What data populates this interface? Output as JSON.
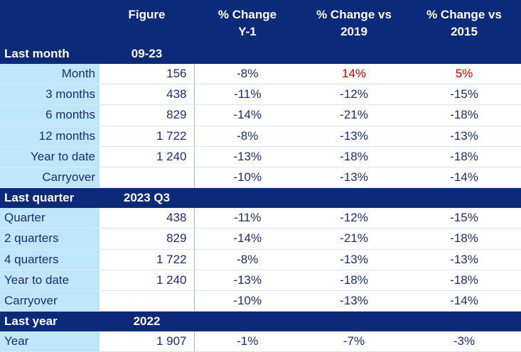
{
  "header": {
    "col_figure": "Figure",
    "col_y1_line1": "% Change",
    "col_y1_line2": "Y-1",
    "col_2019_line1": "% Change vs",
    "col_2019_line2": "2019",
    "col_2015_line1": "% Change vs",
    "col_2015_line2": "2015"
  },
  "sections": [
    {
      "label": "Last month",
      "period": "09-23",
      "rows": [
        {
          "label": "Month",
          "figure": "156",
          "y1": "-8%",
          "v2019": "14%",
          "v2015": "5%"
        },
        {
          "label": "3 months",
          "figure": "438",
          "y1": "-11%",
          "v2019": "-12%",
          "v2015": "-15%"
        },
        {
          "label": "6 months",
          "figure": "829",
          "y1": "-14%",
          "v2019": "-21%",
          "v2015": "-18%"
        },
        {
          "label": "12 months",
          "figure": "1 722",
          "y1": "-8%",
          "v2019": "-13%",
          "v2015": "-13%"
        },
        {
          "label": "Year to date",
          "figure": "1 240",
          "y1": "-13%",
          "v2019": "-18%",
          "v2015": "-18%"
        },
        {
          "label": "Carryover",
          "figure": "",
          "y1": "-10%",
          "v2019": "-13%",
          "v2015": "-14%"
        }
      ]
    },
    {
      "label": "Last quarter",
      "period": "2023 Q3",
      "rows": [
        {
          "label": "Quarter",
          "figure": "438",
          "y1": "-11%",
          "v2019": "-12%",
          "v2015": "-15%"
        },
        {
          "label": "2 quarters",
          "figure": "829",
          "y1": "-14%",
          "v2019": "-21%",
          "v2015": "-18%"
        },
        {
          "label": "4 quarters",
          "figure": "1 722",
          "y1": "-8%",
          "v2019": "-13%",
          "v2015": "-13%"
        },
        {
          "label": "Year to date",
          "figure": "1 240",
          "y1": "-13%",
          "v2019": "-18%",
          "v2015": "-18%"
        },
        {
          "label": "Carryover",
          "figure": "",
          "y1": "-10%",
          "v2019": "-13%",
          "v2015": "-14%"
        }
      ]
    },
    {
      "label": "Last year",
      "period": "2022",
      "rows": [
        {
          "label": "Year",
          "figure": "1 907",
          "y1": "-1%",
          "v2019": "-7%",
          "v2015": "-3%"
        }
      ]
    }
  ],
  "colors": {
    "header_bg": "#0d2a7a",
    "label_bg": "#bfe6fb",
    "text": "#1f2d6b",
    "positive": "#c00000"
  }
}
